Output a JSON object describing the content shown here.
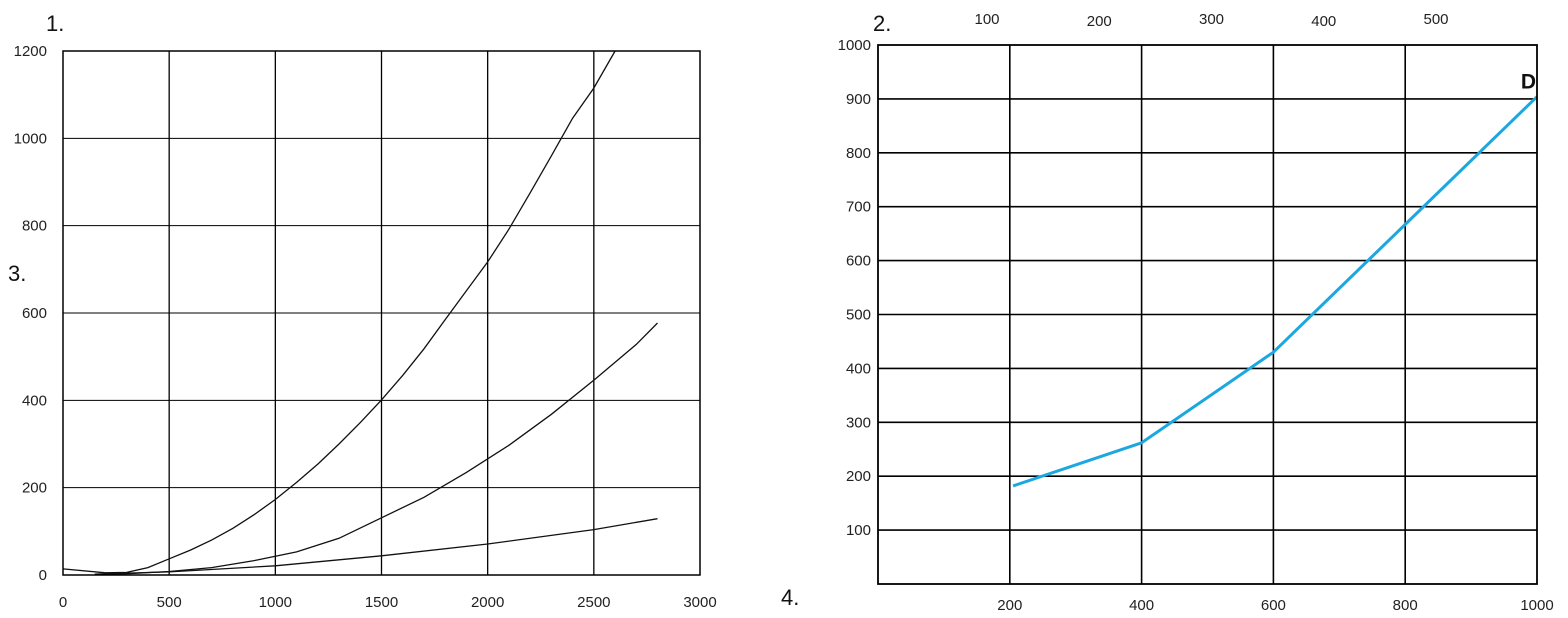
{
  "panel_labels": [
    "1.",
    "2.",
    "3.",
    "4."
  ],
  "chart_data": [
    {
      "type": "line",
      "xlim": [
        0,
        3000
      ],
      "ylim": [
        0,
        1200
      ],
      "x_ticks": [
        "0",
        "500",
        "1000",
        "1500",
        "2000",
        "2500",
        "3000"
      ],
      "y_ticks": [
        "0",
        "200",
        "400",
        "600",
        "800",
        "1000",
        "1200"
      ],
      "grid": true,
      "series": [
        {
          "points": [
            [
              0,
              14
            ],
            [
              200,
              5
            ],
            [
              300,
              6
            ],
            [
              400,
              17
            ],
            [
              500,
              37
            ],
            [
              600,
              57
            ],
            [
              700,
              80
            ],
            [
              800,
              107
            ],
            [
              900,
              138
            ],
            [
              1000,
              173
            ],
            [
              1100,
              212
            ],
            [
              1200,
              254
            ],
            [
              1300,
              300
            ],
            [
              1400,
              349
            ],
            [
              1500,
              401
            ],
            [
              1600,
              457
            ],
            [
              1700,
              518
            ],
            [
              1800,
              585
            ],
            [
              1900,
              651
            ],
            [
              2000,
              717
            ],
            [
              2100,
              792
            ],
            [
              2200,
              875
            ],
            [
              2300,
              960
            ],
            [
              2400,
              1046
            ],
            [
              2500,
              1115
            ],
            [
              2600,
              1200
            ]
          ]
        },
        {
          "points": [
            [
              150,
              2
            ],
            [
              300,
              3
            ],
            [
              500,
              8
            ],
            [
              700,
              17
            ],
            [
              900,
              33
            ],
            [
              1100,
              53
            ],
            [
              1300,
              84
            ],
            [
              1500,
              131
            ],
            [
              1700,
              178
            ],
            [
              1900,
              235
            ],
            [
              2100,
              297
            ],
            [
              2300,
              368
            ],
            [
              2500,
              446
            ],
            [
              2700,
              528
            ],
            [
              2800,
              577
            ]
          ]
        },
        {
          "points": [
            [
              150,
              2
            ],
            [
              500,
              7
            ],
            [
              1000,
              21
            ],
            [
              1500,
              44
            ],
            [
              2000,
              71
            ],
            [
              2500,
              104
            ],
            [
              2800,
              129
            ]
          ]
        }
      ]
    },
    {
      "type": "line",
      "xlim": [
        0,
        1000
      ],
      "ylim": [
        0,
        1000
      ],
      "x_ticks": [
        "200",
        "400",
        "600",
        "800",
        "1000"
      ],
      "y_ticks": [
        "100",
        "200",
        "300",
        "400",
        "500",
        "600",
        "700",
        "800",
        "900",
        "1000"
      ],
      "top_ticks": [
        "100",
        "200",
        "300",
        "400",
        "500"
      ],
      "grid": true,
      "series": [
        {
          "name": "D",
          "color": "#1ba7e0",
          "points": [
            [
              205,
              182
            ],
            [
              400,
              262
            ],
            [
              600,
              430
            ],
            [
              1000,
              904
            ]
          ]
        }
      ]
    }
  ]
}
